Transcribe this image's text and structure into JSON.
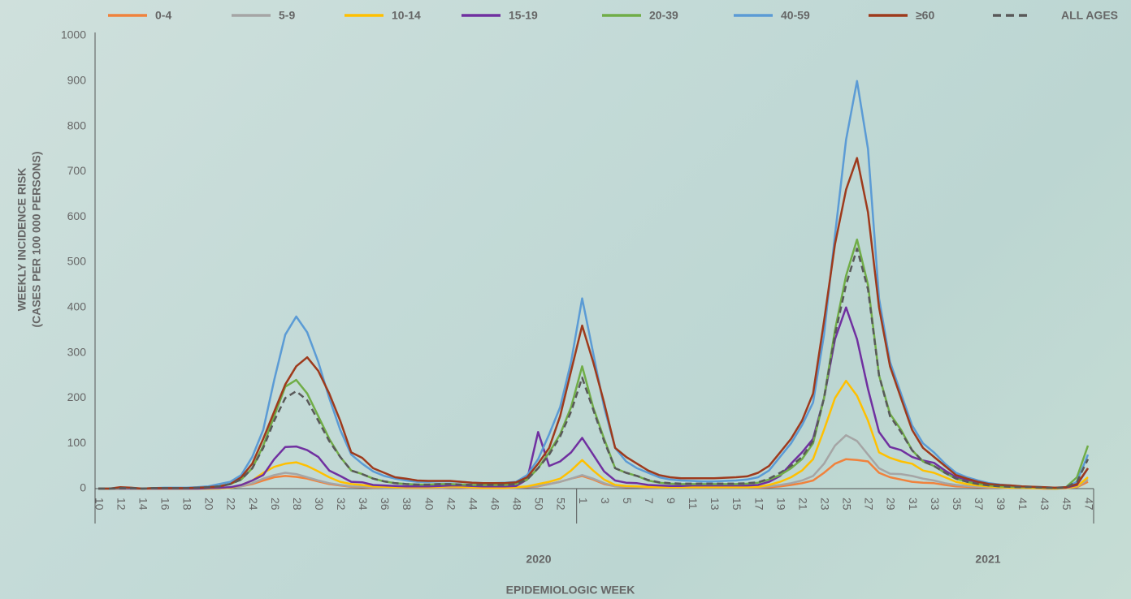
{
  "chart_data": {
    "type": "line",
    "y_title": [
      "WEEKLY INCIDENCE RISK",
      "(CASES PER 100 000 PERSONS)"
    ],
    "x_title": "EPIDEMIOLOGIC WEEK",
    "year_labels": [
      "2020",
      "2021"
    ],
    "categories": [
      "10",
      null,
      "12",
      null,
      "14",
      null,
      "16",
      null,
      "18",
      null,
      "20",
      null,
      "22",
      null,
      "24",
      null,
      "26",
      null,
      "28",
      null,
      "30",
      null,
      "32",
      null,
      "34",
      null,
      "36",
      null,
      "38",
      null,
      "40",
      null,
      "42",
      null,
      "44",
      null,
      "46",
      null,
      "48",
      null,
      "50",
      null,
      "52",
      null,
      "1",
      null,
      "3",
      null,
      "5",
      null,
      "7",
      null,
      "9",
      null,
      "11",
      null,
      "13",
      null,
      "15",
      null,
      "17",
      null,
      "19",
      null,
      "21",
      null,
      "23",
      null,
      "25",
      null,
      "27",
      null,
      "29",
      null,
      "31",
      null,
      "33",
      null,
      "35",
      null,
      "37",
      null,
      "39",
      null,
      "41",
      null,
      "43",
      null,
      "45",
      null,
      "47"
    ],
    "ylim": [
      0,
      1000
    ],
    "yticks": [
      0,
      100,
      200,
      300,
      400,
      500,
      600,
      700,
      800,
      900,
      1000
    ],
    "grid": false,
    "series": [
      {
        "name": "0-4",
        "color": "#f0823c",
        "dash": false,
        "values": [
          0,
          0,
          0,
          0,
          0,
          0,
          0,
          0,
          0,
          0,
          0,
          0,
          2,
          5,
          10,
          18,
          25,
          28,
          26,
          22,
          16,
          10,
          7,
          4,
          3,
          2,
          2,
          2,
          1,
          1,
          1,
          1,
          2,
          2,
          1,
          1,
          1,
          1,
          2,
          3,
          5,
          10,
          15,
          22,
          28,
          20,
          10,
          5,
          3,
          3,
          2,
          2,
          2,
          2,
          2,
          2,
          2,
          2,
          2,
          2,
          2,
          3,
          5,
          8,
          12,
          18,
          35,
          55,
          65,
          63,
          60,
          35,
          25,
          20,
          15,
          13,
          12,
          8,
          5,
          4,
          3,
          2,
          2,
          1,
          1,
          1,
          0,
          0,
          1,
          3,
          15
        ]
      },
      {
        "name": "5-9",
        "color": "#a5a5a5",
        "dash": false,
        "values": [
          0,
          0,
          0,
          0,
          0,
          0,
          0,
          0,
          0,
          0,
          0,
          0,
          2,
          5,
          12,
          22,
          30,
          35,
          32,
          25,
          18,
          12,
          8,
          5,
          4,
          3,
          2,
          2,
          2,
          2,
          2,
          2,
          3,
          3,
          2,
          2,
          2,
          2,
          2,
          4,
          6,
          10,
          15,
          22,
          30,
          22,
          12,
          5,
          4,
          3,
          3,
          2,
          2,
          2,
          2,
          2,
          2,
          2,
          2,
          2,
          3,
          5,
          8,
          12,
          18,
          28,
          55,
          95,
          118,
          105,
          75,
          45,
          33,
          32,
          28,
          22,
          18,
          12,
          8,
          6,
          4,
          3,
          2,
          1,
          1,
          1,
          1,
          0,
          1,
          4,
          20
        ]
      },
      {
        "name": "10-14",
        "color": "#ffc000",
        "dash": false,
        "values": [
          0,
          0,
          0,
          0,
          0,
          0,
          0,
          0,
          0,
          0,
          0,
          1,
          2,
          8,
          18,
          35,
          48,
          55,
          58,
          50,
          38,
          25,
          15,
          10,
          8,
          5,
          4,
          3,
          3,
          3,
          3,
          4,
          5,
          4,
          3,
          2,
          2,
          2,
          3,
          5,
          10,
          15,
          22,
          40,
          63,
          40,
          20,
          8,
          6,
          5,
          4,
          3,
          3,
          3,
          3,
          3,
          3,
          3,
          3,
          3,
          4,
          8,
          15,
          25,
          40,
          65,
          130,
          200,
          238,
          205,
          150,
          80,
          68,
          60,
          55,
          40,
          35,
          25,
          15,
          10,
          7,
          5,
          3,
          2,
          2,
          1,
          1,
          0,
          1,
          5,
          25
        ]
      },
      {
        "name": "15-19",
        "color": "#7030a0",
        "dash": false,
        "values": [
          0,
          0,
          0,
          0,
          0,
          0,
          0,
          0,
          0,
          0,
          1,
          2,
          3,
          8,
          18,
          30,
          65,
          92,
          93,
          85,
          70,
          40,
          28,
          15,
          14,
          8,
          7,
          6,
          5,
          5,
          5,
          6,
          7,
          7,
          6,
          5,
          5,
          5,
          6,
          20,
          125,
          50,
          60,
          80,
          112,
          75,
          38,
          18,
          13,
          12,
          8,
          7,
          6,
          6,
          7,
          7,
          7,
          7,
          7,
          7,
          8,
          15,
          28,
          55,
          80,
          110,
          200,
          330,
          400,
          330,
          220,
          125,
          92,
          85,
          70,
          62,
          57,
          40,
          25,
          18,
          12,
          8,
          6,
          5,
          4,
          3,
          2,
          1,
          2,
          8,
          45
        ]
      },
      {
        "name": "20-39",
        "color": "#70ad47",
        "dash": false,
        "values": [
          0,
          0,
          1,
          1,
          0,
          1,
          1,
          1,
          1,
          2,
          3,
          5,
          10,
          20,
          45,
          95,
          160,
          225,
          240,
          210,
          160,
          110,
          70,
          40,
          32,
          22,
          16,
          12,
          10,
          9,
          9,
          10,
          10,
          9,
          8,
          8,
          8,
          8,
          10,
          20,
          45,
          80,
          120,
          180,
          270,
          180,
          110,
          45,
          35,
          28,
          18,
          13,
          11,
          10,
          10,
          10,
          10,
          10,
          10,
          11,
          13,
          20,
          30,
          45,
          65,
          100,
          200,
          350,
          470,
          550,
          450,
          250,
          165,
          130,
          85,
          60,
          50,
          35,
          22,
          15,
          10,
          7,
          5,
          4,
          3,
          3,
          2,
          1,
          3,
          25,
          95
        ]
      },
      {
        "name": "40-59",
        "color": "#5b9bd5",
        "dash": false,
        "values": [
          0,
          0,
          2,
          1,
          0,
          1,
          2,
          2,
          2,
          3,
          5,
          10,
          15,
          30,
          70,
          130,
          240,
          340,
          380,
          345,
          280,
          200,
          130,
          75,
          55,
          38,
          28,
          22,
          18,
          15,
          15,
          16,
          16,
          15,
          13,
          12,
          12,
          13,
          15,
          30,
          65,
          120,
          180,
          280,
          420,
          300,
          180,
          90,
          60,
          45,
          35,
          25,
          20,
          18,
          17,
          16,
          16,
          17,
          18,
          20,
          25,
          40,
          70,
          100,
          140,
          190,
          340,
          560,
          770,
          900,
          750,
          420,
          280,
          210,
          140,
          100,
          80,
          55,
          35,
          25,
          18,
          12,
          9,
          7,
          5,
          4,
          3,
          2,
          3,
          15,
          75
        ]
      },
      {
        "name": "≥60",
        "color": "#9e3a1c",
        "dash": false,
        "values": [
          0,
          0,
          3,
          2,
          0,
          1,
          1,
          1,
          1,
          2,
          3,
          5,
          10,
          25,
          55,
          110,
          170,
          230,
          270,
          290,
          260,
          210,
          150,
          80,
          68,
          45,
          35,
          25,
          22,
          18,
          17,
          17,
          17,
          15,
          13,
          12,
          12,
          12,
          14,
          25,
          55,
          90,
          160,
          260,
          360,
          280,
          190,
          90,
          70,
          55,
          40,
          30,
          25,
          23,
          23,
          23,
          23,
          24,
          25,
          27,
          35,
          50,
          80,
          110,
          150,
          210,
          370,
          540,
          660,
          730,
          610,
          400,
          270,
          200,
          130,
          90,
          70,
          50,
          30,
          22,
          15,
          10,
          8,
          7,
          5,
          4,
          3,
          2,
          3,
          10,
          45
        ]
      },
      {
        "name": "ALL AGES",
        "color": "#595959",
        "dash": true,
        "values": [
          0,
          0,
          1,
          1,
          0,
          1,
          1,
          1,
          1,
          2,
          3,
          5,
          10,
          20,
          45,
          90,
          150,
          200,
          215,
          195,
          150,
          105,
          70,
          40,
          32,
          22,
          16,
          12,
          10,
          9,
          9,
          10,
          10,
          9,
          8,
          8,
          8,
          8,
          10,
          20,
          45,
          75,
          115,
          170,
          245,
          175,
          105,
          45,
          35,
          28,
          19,
          14,
          12,
          11,
          11,
          11,
          11,
          11,
          11,
          12,
          14,
          22,
          35,
          50,
          70,
          105,
          200,
          340,
          450,
          530,
          440,
          250,
          160,
          125,
          85,
          60,
          50,
          35,
          22,
          15,
          10,
          7,
          5,
          4,
          3,
          3,
          2,
          1,
          3,
          15,
          65
        ]
      }
    ]
  }
}
